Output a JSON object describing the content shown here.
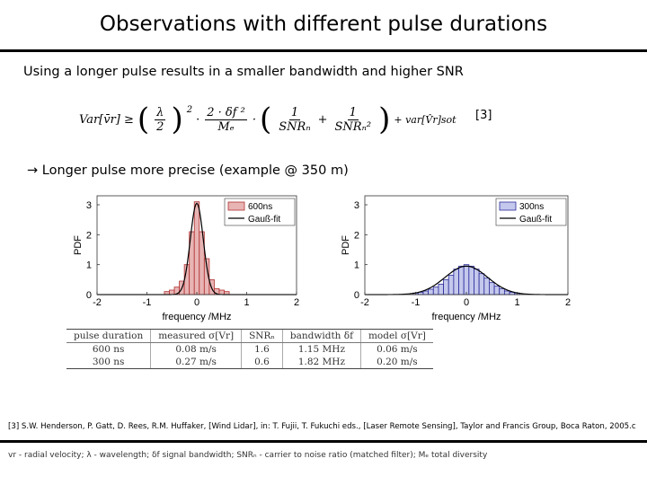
{
  "slide": {
    "title": "Observations with different pulse durations",
    "intro": "Using a longer pulse results in a smaller bandwidth and higher SNR",
    "ref_tag": "[3]",
    "conclusion": "Longer pulse more precise (example @ 350 m)",
    "conclusion_arrow": "→"
  },
  "formula": {
    "lhs": "Var[v̄r] ≥",
    "lambda_frac": {
      "num": "λ",
      "den": "2"
    },
    "exp": "2",
    "mid_frac": {
      "num": "2 · δf ²",
      "den": "Mₑ"
    },
    "dot": "·",
    "snr1_frac": {
      "num": "1",
      "den": "SNRₙ"
    },
    "plus": "+",
    "snr2_frac": {
      "num": "1",
      "den": "SNRₙ²"
    },
    "tail": "+ var[V̂r]sot"
  },
  "chart_data": [
    {
      "type": "bar",
      "series": [
        {
          "name": "600ns",
          "kind": "histogram",
          "color": "#e8b4b4",
          "edge": "#b03030",
          "bin_width": 0.1,
          "x": [
            -0.6,
            -0.5,
            -0.4,
            -0.3,
            -0.2,
            -0.1,
            0.0,
            0.1,
            0.2,
            0.3,
            0.4,
            0.5,
            0.6
          ],
          "values": [
            0.1,
            0.15,
            0.25,
            0.45,
            1.0,
            2.1,
            3.1,
            2.1,
            1.2,
            0.5,
            0.2,
            0.15,
            0.1
          ]
        },
        {
          "name": "Gauß-fit",
          "kind": "line",
          "color": "#000000",
          "mu": 0.0,
          "sigma": 0.13,
          "peak": 3.05
        }
      ],
      "xlabel": "frequency /MHz",
      "ylabel": "PDF",
      "xticks": [
        -2,
        -1,
        0,
        1,
        2
      ],
      "yticks": [
        0,
        1,
        2,
        3
      ],
      "xlim": [
        -2,
        2
      ],
      "ylim": [
        0,
        3.3
      ],
      "grid": false,
      "legend": "top-right"
    },
    {
      "type": "bar",
      "series": [
        {
          "name": "300ns",
          "kind": "histogram",
          "color": "#c4c8ec",
          "edge": "#2a2a9a",
          "bin_width": 0.1,
          "x": [
            -1.0,
            -0.9,
            -0.8,
            -0.7,
            -0.6,
            -0.5,
            -0.4,
            -0.3,
            -0.2,
            -0.1,
            0.0,
            0.1,
            0.2,
            0.3,
            0.4,
            0.5,
            0.6,
            0.7,
            0.8,
            0.9,
            1.0
          ],
          "values": [
            0.05,
            0.08,
            0.12,
            0.18,
            0.25,
            0.35,
            0.5,
            0.65,
            0.85,
            0.95,
            1.0,
            0.95,
            0.85,
            0.7,
            0.55,
            0.4,
            0.28,
            0.2,
            0.12,
            0.08,
            0.05
          ]
        },
        {
          "name": "Gauß-fit",
          "kind": "line",
          "color": "#000000",
          "mu": 0.0,
          "sigma": 0.42,
          "peak": 0.95
        }
      ],
      "xlabel": "frequency /MHz",
      "ylabel": "PDF",
      "xticks": [
        -2,
        -1,
        0,
        1,
        2
      ],
      "yticks": [
        0,
        1,
        2,
        3
      ],
      "xlim": [
        -2,
        2
      ],
      "ylim": [
        0,
        3.3
      ],
      "grid": false,
      "legend": "top-right"
    }
  ],
  "table": {
    "headers": [
      "pulse duration",
      "measured σ[Vr]",
      "SNRₙ",
      "bandwidth δf",
      "model σ[Vr]"
    ],
    "rows": [
      [
        "600 ns",
        "0.08 m/s",
        "1.6",
        "1.15 MHz",
        "0.06 m/s"
      ],
      [
        "300 ns",
        "0.27 m/s",
        "0.6",
        "1.82 MHz",
        "0.20 m/s"
      ]
    ]
  },
  "footnotes": {
    "reference": "[3] S.W. Henderson, P. Gatt, D. Rees, R.M. Huffaker, [Wind Lidar], in: T. Fujii, T. Fukuchi eds., [Laser Remote Sensing], Taylor and Francis Group, Boca Raton, 2005.c",
    "legend": "vr - radial velocity; λ - wavelength; δf signal bandwidth; SNRₙ - carrier to noise ratio (matched filter); Mₑ total diversity"
  }
}
